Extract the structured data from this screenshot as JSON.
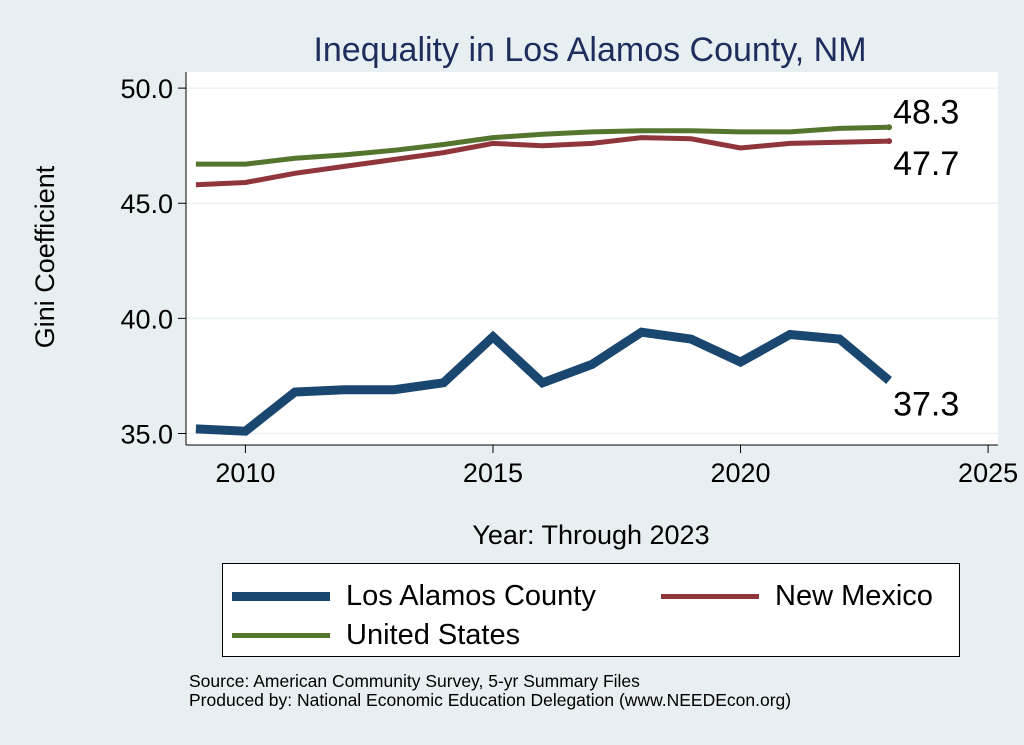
{
  "chart_data": {
    "type": "line",
    "title": "Inequality in Los Alamos County, NM",
    "xlabel": "Year: Through 2023",
    "ylabel": "Gini Coefficient",
    "xlim": [
      2008.8,
      2025.2
    ],
    "ylim": [
      34.5,
      50.7
    ],
    "xticks": [
      2010,
      2015,
      2020,
      2025
    ],
    "yticks": [
      35.0,
      40.0,
      45.0,
      50.0
    ],
    "ytick_labels": [
      "35.0",
      "40.0",
      "45.0",
      "50.0"
    ],
    "grid": true,
    "x": [
      2009,
      2010,
      2011,
      2012,
      2013,
      2014,
      2015,
      2016,
      2017,
      2018,
      2019,
      2020,
      2021,
      2022,
      2023
    ],
    "series": [
      {
        "name": "Los Alamos County",
        "color": "#1a476f",
        "values": [
          35.2,
          35.1,
          36.8,
          36.9,
          36.9,
          37.2,
          39.2,
          37.2,
          38.0,
          39.4,
          39.1,
          38.1,
          39.3,
          39.1,
          37.3
        ],
        "end_label": "37.3"
      },
      {
        "name": "New Mexico",
        "color": "#90353b",
        "values": [
          45.8,
          45.9,
          46.3,
          46.6,
          46.9,
          47.2,
          47.6,
          47.5,
          47.6,
          47.85,
          47.8,
          47.4,
          47.6,
          47.65,
          47.7
        ],
        "end_label": "47.7"
      },
      {
        "name": "United States",
        "color": "#55752f",
        "values": [
          46.7,
          46.7,
          46.95,
          47.1,
          47.3,
          47.55,
          47.85,
          48.0,
          48.1,
          48.15,
          48.15,
          48.1,
          48.1,
          48.25,
          48.3
        ],
        "end_label": "48.3"
      }
    ],
    "legend_position": "bottom"
  },
  "legend": {
    "items": [
      {
        "label": "Los Alamos County",
        "color": "#1a476f"
      },
      {
        "label": "New Mexico",
        "color": "#90353b"
      },
      {
        "label": "United States",
        "color": "#55752f"
      }
    ]
  },
  "notes": {
    "source": "Source: American Community Survey, 5-yr Summary Files",
    "produced_by": "Produced by: National Economic Education Delegation (www.NEEDEcon.org)"
  }
}
